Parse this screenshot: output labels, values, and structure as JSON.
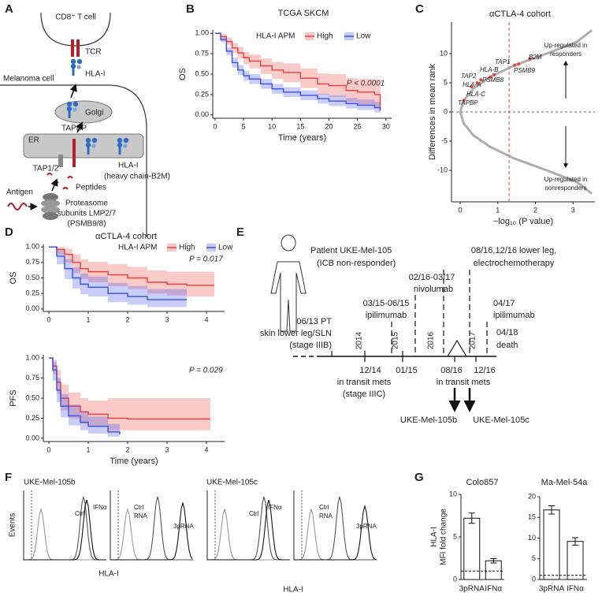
{
  "panel_labels": [
    "A",
    "B",
    "C",
    "D",
    "E",
    "F",
    "G"
  ],
  "diagram_a": {
    "t_cell": "CD8⁺ T cell",
    "tcr": "TCR",
    "hla_top": "HLA-I",
    "cell": "Melanoma cell",
    "golgi": "Golgi",
    "tapbp": "TAPBP",
    "er": "ER",
    "tap": "TAP1/2",
    "hla_er": "HLA-I",
    "heavy": "(heavy chain-B2M)",
    "antigen": "Antigen",
    "peptides": "Peptides",
    "proteasome": [
      "Proteasome",
      "subunits LMP2/7",
      "(PSMB9/8)"
    ]
  },
  "timeline_e": {
    "patient": [
      "Patient UKE-Mel-105",
      "(ICB non-responder)"
    ],
    "ect": [
      "08/16,12/16 lower leg,",
      "electrochemotherapy"
    ],
    "nivo": [
      "02/16-03/17",
      "nivolumab"
    ],
    "ipi1": [
      "03/15-06/15",
      "ipilimumab"
    ],
    "pt": [
      "06/13 PT",
      "skin lower leg/SLN",
      "(stage IIIB)"
    ],
    "ipi2": [
      "04/17",
      "ipilimumab"
    ],
    "death": [
      "04/18",
      "death"
    ],
    "years": [
      2014,
      2015,
      2016,
      2017
    ],
    "mets1": [
      "12/14",
      "in transit mets",
      "(stage IIIC)"
    ],
    "d0115": "01/15",
    "mets2": [
      "08/16",
      "12/16",
      "in transit mets"
    ],
    "lines": [
      "UKE-Mel-105b",
      "UKE-Mel-105c"
    ]
  },
  "flow_f": {
    "samples": [
      "UKE-Mel-105b",
      "UKE-Mel-105c"
    ],
    "ylabel": "Events",
    "xlabel": "HLA-I",
    "ifn_labels": [
      "Ctrl",
      "IFNα"
    ],
    "rna_labels": [
      "Ctrl",
      "RNA",
      "3pRNA"
    ]
  },
  "chart_data": [
    {
      "type": "line",
      "step": true,
      "title": "TCGA SKCM",
      "legend_title": "HLA-I APM",
      "annotation": "P < 0.0001",
      "xlabel": "Time (years)",
      "ylabel": "OS",
      "x": [
        0,
        1,
        2,
        3,
        4,
        5,
        6,
        8,
        10,
        12,
        15,
        18,
        20,
        23,
        25,
        28,
        29
      ],
      "series": [
        {
          "name": "High",
          "color": "#e8413a",
          "values": [
            1,
            0.96,
            0.9,
            0.82,
            0.76,
            0.7,
            0.66,
            0.6,
            0.55,
            0.52,
            0.45,
            0.38,
            0.36,
            0.3,
            0.28,
            0.25,
            0.05
          ],
          "lower": [
            1,
            0.93,
            0.85,
            0.76,
            0.69,
            0.62,
            0.57,
            0.5,
            0.44,
            0.4,
            0.33,
            0.25,
            0.22,
            0.16,
            0.13,
            0.08,
            0.01
          ],
          "upper": [
            1,
            0.99,
            0.95,
            0.88,
            0.83,
            0.77,
            0.74,
            0.69,
            0.65,
            0.63,
            0.57,
            0.51,
            0.5,
            0.45,
            0.44,
            0.43,
            0.43
          ]
        },
        {
          "name": "Low",
          "color": "#3a4fe8",
          "values": [
            1,
            0.92,
            0.78,
            0.64,
            0.55,
            0.48,
            0.44,
            0.38,
            0.32,
            0.28,
            0.24,
            0.2,
            0.17,
            0.14,
            0.12,
            0.09,
            0.06
          ],
          "lower": [
            1,
            0.89,
            0.73,
            0.58,
            0.49,
            0.42,
            0.38,
            0.32,
            0.26,
            0.22,
            0.18,
            0.14,
            0.11,
            0.08,
            0.06,
            0.03,
            0.01
          ],
          "upper": [
            1,
            0.95,
            0.83,
            0.7,
            0.61,
            0.54,
            0.5,
            0.44,
            0.38,
            0.34,
            0.3,
            0.26,
            0.24,
            0.21,
            0.19,
            0.16,
            0.12
          ]
        }
      ],
      "xlim": [
        -0.4,
        31
      ],
      "xticks": [
        0,
        5,
        10,
        15,
        20,
        25,
        30
      ],
      "ylim": [
        -0.04,
        1.04
      ],
      "yticks": [
        {
          "value": 0,
          "label": "0.00"
        },
        {
          "value": 0.25,
          "label": "0.25"
        },
        {
          "value": 0.5,
          "label": "0.50"
        },
        {
          "value": 0.75,
          "label": "0.75"
        },
        {
          "value": 1,
          "label": "1.00"
        }
      ]
    },
    {
      "type": "scatter",
      "title": "αCTLA-4 cohort",
      "xlabel": "−log₁₀ (P value)",
      "ylabel": "Differences in mean rank",
      "color": "#9a9a9a",
      "x": [
        3.5,
        3.1,
        2.3,
        1.45,
        0.8,
        0.35,
        0.1,
        0,
        0.1,
        0.35,
        0.8,
        1.45,
        2.3,
        3.1,
        3.5
      ],
      "values": [
        -14,
        -12,
        -10,
        -8,
        -6,
        -4,
        -2,
        0,
        2,
        4,
        6,
        8,
        10,
        12,
        14
      ],
      "genes": {
        "color": "#e8413a",
        "labels": [
          "TAPBP",
          "HLA-C",
          "HLA-A",
          "TAP2",
          "HLA-B",
          "PSMB8",
          "TAP1",
          "PSMB9",
          "B2M"
        ],
        "x": [
          0.1,
          0.3,
          0.45,
          0.55,
          0.8,
          0.9,
          1.45,
          1.55,
          1.85
        ],
        "values": [
          2,
          4.3,
          5,
          5.5,
          6,
          6.4,
          8,
          8.2,
          9.1
        ]
      },
      "vline": 1.3,
      "hline": 0,
      "annotations": [
        [
          "Up-regulated in",
          "responders"
        ],
        [
          "Up-regulated in",
          "nonresponders"
        ]
      ],
      "xlim": [
        -0.23,
        3.58
      ],
      "xticks": [
        0,
        1,
        2,
        3
      ],
      "ylim": [
        -15.4,
        15.4
      ],
      "yticks": [
        -10,
        -5,
        0,
        5,
        10
      ]
    },
    {
      "type": "line",
      "step": true,
      "title": "αCTLA-4 cohort",
      "legend_title": "HLA-I APM",
      "annotation": "P = 0.017",
      "ylabel": "OS",
      "x": [
        0,
        0.2,
        0.4,
        0.6,
        0.8,
        1,
        1.5,
        2,
        2.5,
        3,
        3.5,
        4.2
      ],
      "series": [
        {
          "name": "High",
          "color": "#e8413a",
          "values": [
            1,
            0.96,
            0.88,
            0.75,
            0.65,
            0.6,
            0.55,
            0.5,
            0.43,
            0.4,
            0.38,
            0.38
          ],
          "lower": [
            1,
            0.88,
            0.75,
            0.58,
            0.48,
            0.43,
            0.37,
            0.32,
            0.25,
            0.22,
            0.2,
            0.2
          ],
          "upper": [
            1,
            1,
            0.97,
            0.88,
            0.8,
            0.76,
            0.72,
            0.68,
            0.62,
            0.6,
            0.6,
            0.6
          ]
        },
        {
          "name": "Low",
          "color": "#3a4fe8",
          "values": [
            1,
            0.85,
            0.65,
            0.5,
            0.4,
            0.35,
            0.25,
            0.2,
            0.15,
            0.15,
            0.15,
            null
          ],
          "lower": [
            1,
            0.72,
            0.48,
            0.33,
            0.24,
            0.2,
            0.11,
            0.07,
            0.03,
            0.03,
            0.03,
            null
          ],
          "upper": [
            1,
            0.95,
            0.8,
            0.67,
            0.57,
            0.52,
            0.42,
            0.37,
            0.32,
            0.32,
            0.32,
            null
          ]
        }
      ],
      "xlim": [
        -0.14,
        4.46
      ],
      "xticks": [
        0,
        1,
        2,
        3,
        4
      ],
      "ylim": [
        -0.04,
        1.04
      ],
      "yticks": [
        {
          "value": 0,
          "label": "0.00"
        },
        {
          "value": 0.25,
          "label": "0.25"
        },
        {
          "value": 0.5,
          "label": "0.50"
        },
        {
          "value": 0.75,
          "label": "0.75"
        },
        {
          "value": 1,
          "label": "1.00"
        }
      ]
    },
    {
      "type": "line",
      "step": true,
      "annotation": "P = 0.029",
      "xlabel": "Time (years)",
      "ylabel": "PFS",
      "x": [
        0,
        0.1,
        0.2,
        0.3,
        0.5,
        0.8,
        1,
        1.5,
        1.8,
        2,
        4.1
      ],
      "series": [
        {
          "name": "High",
          "color": "#e8413a",
          "values": [
            1,
            0.9,
            0.7,
            0.5,
            0.4,
            0.33,
            0.3,
            0.25,
            0.25,
            0.24,
            0.24
          ],
          "lower": [
            1,
            0.8,
            0.55,
            0.35,
            0.25,
            0.18,
            0.15,
            0.1,
            0.1,
            0.1,
            0.1
          ],
          "upper": [
            1,
            0.98,
            0.85,
            0.67,
            0.57,
            0.5,
            0.47,
            0.5,
            0.5,
            0.5,
            0.5
          ]
        },
        {
          "name": "Low",
          "color": "#3a4fe8",
          "values": [
            1,
            0.85,
            0.6,
            0.4,
            0.28,
            0.2,
            0.15,
            0.08,
            0.05,
            null,
            null
          ],
          "lower": [
            1,
            0.72,
            0.45,
            0.26,
            0.16,
            0.1,
            0.06,
            0.02,
            0.01,
            null,
            null
          ],
          "upper": [
            1,
            0.95,
            0.75,
            0.55,
            0.42,
            0.33,
            0.27,
            0.18,
            0.12,
            null,
            null
          ]
        }
      ],
      "xlim": [
        -0.14,
        4.46
      ],
      "xticks": [
        0,
        1,
        2,
        3,
        4
      ],
      "ylim": [
        -0.04,
        1.04
      ],
      "yticks": [
        {
          "value": 0,
          "label": "0.00"
        },
        {
          "value": 0.25,
          "label": "0.25"
        },
        {
          "value": 0.5,
          "label": "0.50"
        },
        {
          "value": 0.75,
          "label": "0.75"
        },
        {
          "value": 1,
          "label": "1.00"
        }
      ]
    },
    {
      "type": "bar",
      "title": "Colo857",
      "ylabel": [
        "HLA-I",
        "MFI fold change"
      ],
      "color": "#ffffff",
      "categories": [
        "3pRNA",
        "IFNα"
      ],
      "values": [
        7.2,
        2.2
      ],
      "error": [
        0.6,
        0.25
      ],
      "reference_line": 1,
      "ylim": [
        0,
        10
      ],
      "yticks": [
        0,
        5,
        10
      ]
    },
    {
      "type": "bar",
      "title": "Ma-Mel-54a",
      "color": "#ffffff",
      "categories": [
        "3pRNA",
        "IFNα"
      ],
      "values": [
        16.8,
        9.2
      ],
      "error": [
        1.0,
        0.9
      ],
      "reference_line": 1,
      "ylim": [
        0,
        20
      ],
      "yticks": [
        0,
        5,
        10,
        15,
        20
      ]
    }
  ]
}
